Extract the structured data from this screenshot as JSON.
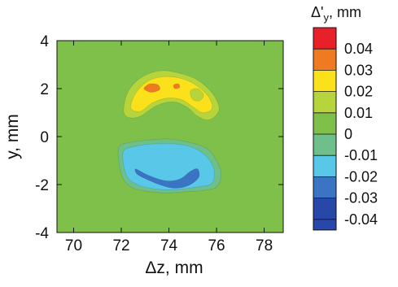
{
  "chart_data": {
    "type": "contour",
    "title": "",
    "xlabel": "Δz, mm",
    "ylabel": "y, mm",
    "xlim": [
      69.3,
      78.8
    ],
    "ylim": [
      -4,
      4
    ],
    "xticks": [
      "70",
      "72",
      "74",
      "76",
      "78"
    ],
    "yticks": [
      "4",
      "2",
      "0",
      "-2",
      "-4"
    ],
    "xtick_values": [
      70,
      72,
      74,
      76,
      78
    ],
    "ytick_values": [
      4,
      2,
      0,
      -2,
      -4
    ],
    "grid": false,
    "background_level": "0",
    "colorbar": {
      "title_main": "Δ'",
      "title_sub": "y",
      "title_unit": ", mm",
      "placement": "right",
      "levels": [
        {
          "label": "0.04",
          "color": "#e8202a"
        },
        {
          "label": "0.03",
          "color": "#f07a22"
        },
        {
          "label": "0.02",
          "color": "#fbe11b"
        },
        {
          "label": "0.01",
          "color": "#b6d53c"
        },
        {
          "label": "0",
          "color": "#7ec04a"
        },
        {
          "label": "-0.01",
          "color": "#6fbf8a"
        },
        {
          "label": "-0.02",
          "color": "#58c7e8"
        },
        {
          "label": "-0.03",
          "color": "#3a74c2"
        },
        {
          "label": "-0.04",
          "color": "#2748a8"
        }
      ],
      "bottom_color": "#2748a8"
    },
    "regions": [
      {
        "level": 0.01,
        "color": "#b6d53c",
        "points": [
          [
            72.1,
            1.1
          ],
          [
            72.3,
            1.9
          ],
          [
            72.9,
            2.5
          ],
          [
            73.7,
            2.75
          ],
          [
            74.6,
            2.6
          ],
          [
            75.3,
            2.3
          ],
          [
            75.9,
            1.7
          ],
          [
            76.1,
            1.1
          ],
          [
            75.7,
            0.7
          ],
          [
            75.2,
            0.85
          ],
          [
            74.8,
            1.2
          ],
          [
            74.2,
            1.45
          ],
          [
            73.5,
            1.3
          ],
          [
            72.8,
            0.85
          ],
          [
            72.3,
            0.8
          ]
        ]
      },
      {
        "level": 0.02,
        "color": "#fbe11b",
        "points": [
          [
            72.4,
            1.2
          ],
          [
            72.6,
            1.8
          ],
          [
            73.1,
            2.3
          ],
          [
            73.8,
            2.5
          ],
          [
            74.6,
            2.4
          ],
          [
            75.2,
            2.1
          ],
          [
            75.7,
            1.6
          ],
          [
            75.8,
            1.15
          ],
          [
            75.4,
            1.0
          ],
          [
            75.0,
            1.25
          ],
          [
            74.5,
            1.55
          ],
          [
            73.9,
            1.6
          ],
          [
            73.3,
            1.4
          ],
          [
            72.8,
            1.05
          ]
        ]
      },
      {
        "level": 0.01,
        "color": "#b6d53c",
        "points": [
          [
            74.9,
            1.9
          ],
          [
            75.2,
            2.0
          ],
          [
            75.45,
            1.75
          ],
          [
            75.3,
            1.5
          ],
          [
            75.0,
            1.55
          ]
        ]
      },
      {
        "level": 0.03,
        "color": "#f07a22",
        "points": [
          [
            72.95,
            2.0
          ],
          [
            73.2,
            2.2
          ],
          [
            73.55,
            2.15
          ],
          [
            73.6,
            1.95
          ],
          [
            73.25,
            1.85
          ]
        ]
      },
      {
        "level": 0.03,
        "color": "#f07a22",
        "points": [
          [
            74.2,
            2.15
          ],
          [
            74.4,
            2.2
          ],
          [
            74.45,
            2.05
          ],
          [
            74.25,
            2.0
          ]
        ]
      },
      {
        "level": -0.01,
        "color": "#6fbf8a",
        "points": [
          [
            71.9,
            -0.45
          ],
          [
            72.3,
            -0.25
          ],
          [
            73.1,
            -0.15
          ],
          [
            74.0,
            -0.1
          ],
          [
            74.9,
            -0.25
          ],
          [
            75.6,
            -0.5
          ],
          [
            76.0,
            -1.0
          ],
          [
            76.2,
            -1.6
          ],
          [
            76.0,
            -2.1
          ],
          [
            75.4,
            -2.25
          ],
          [
            74.7,
            -2.3
          ],
          [
            74.0,
            -2.35
          ],
          [
            73.2,
            -2.3
          ],
          [
            72.5,
            -2.15
          ],
          [
            72.1,
            -1.8
          ],
          [
            71.9,
            -1.1
          ]
        ]
      },
      {
        "level": -0.02,
        "color": "#58c7e8",
        "points": [
          [
            72.1,
            -0.6
          ],
          [
            72.6,
            -0.4
          ],
          [
            73.4,
            -0.3
          ],
          [
            74.2,
            -0.3
          ],
          [
            75.0,
            -0.45
          ],
          [
            75.6,
            -0.85
          ],
          [
            75.9,
            -1.4
          ],
          [
            75.8,
            -1.95
          ],
          [
            75.2,
            -2.1
          ],
          [
            74.4,
            -2.2
          ],
          [
            73.6,
            -2.2
          ],
          [
            72.8,
            -2.05
          ],
          [
            72.3,
            -1.75
          ],
          [
            72.1,
            -1.2
          ]
        ]
      },
      {
        "level": -0.03,
        "color": "#3a74c2",
        "points": [
          [
            72.6,
            -1.35
          ],
          [
            73.0,
            -1.55
          ],
          [
            73.5,
            -1.75
          ],
          [
            74.0,
            -1.85
          ],
          [
            74.5,
            -1.75
          ],
          [
            74.9,
            -1.45
          ],
          [
            75.2,
            -1.35
          ],
          [
            75.25,
            -1.7
          ],
          [
            74.8,
            -2.05
          ],
          [
            74.2,
            -2.15
          ],
          [
            73.6,
            -2.0
          ],
          [
            73.0,
            -1.75
          ],
          [
            72.65,
            -1.55
          ]
        ]
      }
    ]
  }
}
